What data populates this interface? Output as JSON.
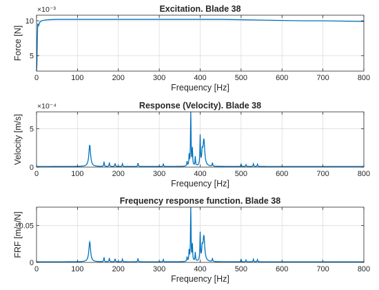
{
  "colors": {
    "line": "#0072BD",
    "grid": "#DCDCDC",
    "axis": "#262626",
    "background": "#FFFFFF"
  },
  "chart_data": [
    {
      "type": "line",
      "title": "Excitation. Blade 38",
      "xlabel": "Frequency [Hz]",
      "ylabel": "Force [N]",
      "exponent": "×10⁻³",
      "xlim": [
        0,
        800
      ],
      "ylim": [
        2.8,
        10.8
      ],
      "grid": true,
      "xticks": [
        0,
        100,
        200,
        300,
        400,
        500,
        600,
        700,
        800
      ],
      "xtick_labels": [
        "0",
        "100",
        "200",
        "300",
        "400",
        "500",
        "600",
        "700",
        "800"
      ],
      "yticks": [
        5,
        10
      ],
      "ytick_labels": [
        "5",
        "10"
      ],
      "series": [
        {
          "x": [
            0,
            1,
            2,
            3,
            5,
            8,
            12,
            20,
            30,
            50,
            100,
            150,
            200,
            250,
            300,
            350,
            400,
            450,
            500,
            550,
            600,
            650,
            700,
            750,
            800
          ],
          "y": [
            2.8,
            3.8,
            7.5,
            9.6,
            9.3,
            9.8,
            10.0,
            10.1,
            10.15,
            10.2,
            10.2,
            10.2,
            10.2,
            10.2,
            10.2,
            10.2,
            10.2,
            10.2,
            10.15,
            10.1,
            10.05,
            10.0,
            10.0,
            9.95,
            9.9
          ]
        }
      ]
    },
    {
      "type": "line",
      "title": "Response (Velocity). Blade 38",
      "xlabel": "Frequency [Hz]",
      "ylabel": "Velocity [m/s]",
      "exponent": "×10⁻⁴",
      "xlim": [
        0,
        800
      ],
      "ylim": [
        0,
        7.2
      ],
      "grid": true,
      "xticks": [
        0,
        100,
        200,
        300,
        400,
        500,
        600,
        700,
        800
      ],
      "xtick_labels": [
        "0",
        "100",
        "200",
        "300",
        "400",
        "500",
        "600",
        "700",
        "800"
      ],
      "yticks": [
        0,
        5
      ],
      "ytick_labels": [
        "0",
        "5"
      ],
      "baseline": 0.08,
      "peaks": [
        {
          "x": 130,
          "y": 2.8,
          "width": 2.5
        },
        {
          "x": 165,
          "y": 0.6,
          "width": 0.8
        },
        {
          "x": 178,
          "y": 0.5,
          "width": 0.8
        },
        {
          "x": 192,
          "y": 0.4,
          "width": 0.8
        },
        {
          "x": 210,
          "y": 0.35,
          "width": 0.8
        },
        {
          "x": 248,
          "y": 0.45,
          "width": 0.8
        },
        {
          "x": 310,
          "y": 0.3,
          "width": 0.8
        },
        {
          "x": 368,
          "y": 0.6,
          "width": 0.8
        },
        {
          "x": 373,
          "y": 1.4,
          "width": 0.8
        },
        {
          "x": 377,
          "y": 7.2,
          "width": 0.8
        },
        {
          "x": 381,
          "y": 2.2,
          "width": 0.8
        },
        {
          "x": 388,
          "y": 1.2,
          "width": 0.8
        },
        {
          "x": 400,
          "y": 3.8,
          "width": 0.8
        },
        {
          "x": 405,
          "y": 1.5,
          "width": 1.5
        },
        {
          "x": 409,
          "y": 3.4,
          "width": 2.5
        },
        {
          "x": 430,
          "y": 0.45,
          "width": 0.8
        },
        {
          "x": 500,
          "y": 0.3,
          "width": 0.8
        },
        {
          "x": 512,
          "y": 0.25,
          "width": 0.8
        },
        {
          "x": 530,
          "y": 0.35,
          "width": 0.8
        },
        {
          "x": 540,
          "y": 0.3,
          "width": 0.8
        }
      ]
    },
    {
      "type": "line",
      "title": "Frequency response function. Blade 38",
      "xlabel": "Frequency [Hz]",
      "ylabel": "FRF [m/s/N]",
      "exponent": "",
      "xlim": [
        0,
        800
      ],
      "ylim": [
        0,
        0.075
      ],
      "grid": true,
      "xticks": [
        0,
        100,
        200,
        300,
        400,
        500,
        600,
        700,
        800
      ],
      "xtick_labels": [
        "0",
        "100",
        "200",
        "300",
        "400",
        "500",
        "600",
        "700",
        "800"
      ],
      "yticks": [
        0,
        0.05
      ],
      "ytick_labels": [
        "0",
        "0.05"
      ],
      "baseline": 0.0008,
      "peaks": [
        {
          "x": 130,
          "y": 0.027,
          "width": 2.5
        },
        {
          "x": 165,
          "y": 0.006,
          "width": 0.8
        },
        {
          "x": 178,
          "y": 0.005,
          "width": 0.8
        },
        {
          "x": 192,
          "y": 0.004,
          "width": 0.8
        },
        {
          "x": 210,
          "y": 0.0035,
          "width": 0.8
        },
        {
          "x": 248,
          "y": 0.0045,
          "width": 0.8
        },
        {
          "x": 310,
          "y": 0.003,
          "width": 0.8
        },
        {
          "x": 368,
          "y": 0.006,
          "width": 0.8
        },
        {
          "x": 373,
          "y": 0.014,
          "width": 0.8
        },
        {
          "x": 377,
          "y": 0.075,
          "width": 0.8
        },
        {
          "x": 381,
          "y": 0.022,
          "width": 0.8
        },
        {
          "x": 388,
          "y": 0.012,
          "width": 0.8
        },
        {
          "x": 400,
          "y": 0.037,
          "width": 0.8
        },
        {
          "x": 405,
          "y": 0.015,
          "width": 1.5
        },
        {
          "x": 409,
          "y": 0.034,
          "width": 2.5
        },
        {
          "x": 430,
          "y": 0.0045,
          "width": 0.8
        },
        {
          "x": 500,
          "y": 0.003,
          "width": 0.8
        },
        {
          "x": 512,
          "y": 0.0025,
          "width": 0.8
        },
        {
          "x": 530,
          "y": 0.0035,
          "width": 0.8
        },
        {
          "x": 540,
          "y": 0.003,
          "width": 0.8
        }
      ]
    }
  ]
}
